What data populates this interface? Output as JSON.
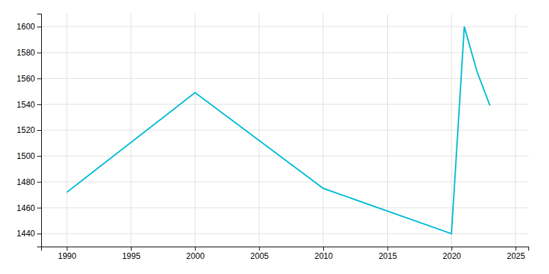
{
  "chart_data": {
    "type": "line",
    "x": [
      1990,
      2000,
      2010,
      2020,
      2021,
      2022,
      2023
    ],
    "values": [
      1472,
      1549,
      1475,
      1440,
      1600,
      1565,
      1539
    ],
    "color": "#00bcd4",
    "xlim": [
      1988,
      2026
    ],
    "ylim": [
      1430,
      1610
    ],
    "xticks": [
      1990,
      1995,
      2000,
      2005,
      2010,
      2015,
      2020,
      2025
    ],
    "yticks": [
      1440,
      1460,
      1480,
      1500,
      1520,
      1540,
      1560,
      1580,
      1600
    ],
    "grid": true
  }
}
